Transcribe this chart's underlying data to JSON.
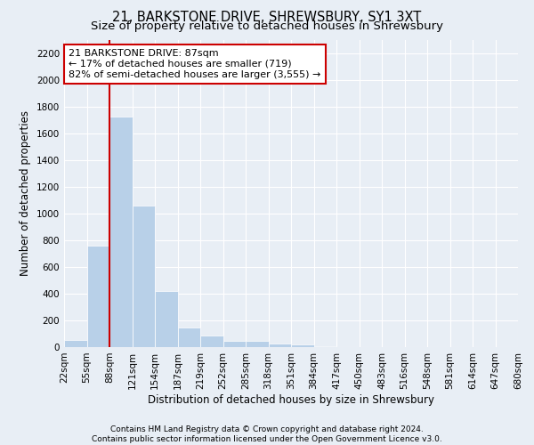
{
  "title": "21, BARKSTONE DRIVE, SHREWSBURY, SY1 3XT",
  "subtitle": "Size of property relative to detached houses in Shrewsbury",
  "xlabel": "Distribution of detached houses by size in Shrewsbury",
  "ylabel": "Number of detached properties",
  "bin_labels": [
    "22sqm",
    "55sqm",
    "88sqm",
    "121sqm",
    "154sqm",
    "187sqm",
    "219sqm",
    "252sqm",
    "285sqm",
    "318sqm",
    "351sqm",
    "384sqm",
    "417sqm",
    "450sqm",
    "483sqm",
    "516sqm",
    "548sqm",
    "581sqm",
    "614sqm",
    "647sqm",
    "680sqm"
  ],
  "bar_values": [
    55,
    760,
    1730,
    1060,
    420,
    150,
    85,
    50,
    45,
    30,
    20,
    10,
    0,
    0,
    0,
    0,
    0,
    0,
    0,
    0
  ],
  "bar_color": "#b8d0e8",
  "bar_edgecolor": "#b8d0e8",
  "vline_x": 2,
  "vline_color": "#cc0000",
  "annotation_line1": "21 BARKSTONE DRIVE: 87sqm",
  "annotation_line2": "← 17% of detached houses are smaller (719)",
  "annotation_line3": "82% of semi-detached houses are larger (3,555) →",
  "annotation_box_color": "#ffffff",
  "annotation_box_edgecolor": "#cc0000",
  "ylim": [
    0,
    2300
  ],
  "yticks": [
    0,
    200,
    400,
    600,
    800,
    1000,
    1200,
    1400,
    1600,
    1800,
    2000,
    2200
  ],
  "bg_color": "#e8eef5",
  "plot_bg_color": "#e8eef5",
  "footer_line1": "Contains HM Land Registry data © Crown copyright and database right 2024.",
  "footer_line2": "Contains public sector information licensed under the Open Government Licence v3.0.",
  "title_fontsize": 10.5,
  "subtitle_fontsize": 9.5,
  "tick_fontsize": 7.5,
  "ylabel_fontsize": 8.5,
  "xlabel_fontsize": 8.5,
  "annotation_fontsize": 8,
  "footer_fontsize": 6.5
}
